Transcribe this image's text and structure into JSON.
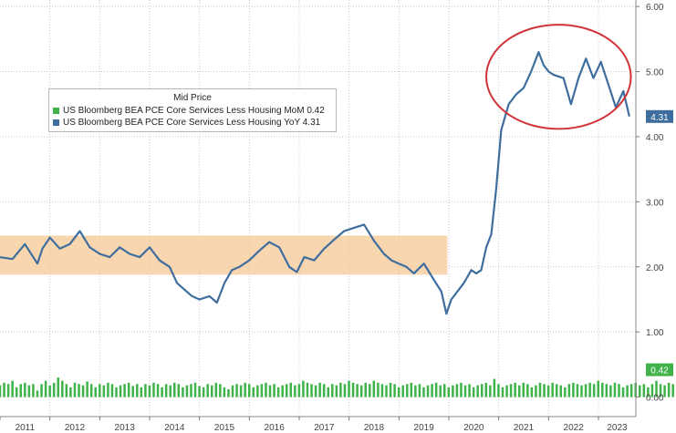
{
  "chart_data": {
    "type": "line",
    "legend": {
      "title": "Mid Price",
      "placement": "top-left",
      "entries": [
        {
          "name": "US Bloomberg BEA PCE Core Services Less Housing MoM",
          "value": "0.42",
          "color": "#3fb34a"
        },
        {
          "name": "US Bloomberg BEA PCE Core Services Less Housing YoY",
          "value": "4.31",
          "color": "#3f6e9e"
        }
      ]
    },
    "x_ticks": [
      "2011",
      "2012",
      "2013",
      "2014",
      "2015",
      "2016",
      "2017",
      "2018",
      "2019",
      "2020",
      "2021",
      "2022",
      "2023"
    ],
    "x_range": [
      2011.0,
      2023.75
    ],
    "y_ticks": [
      "0.00",
      "1.00",
      "2.00",
      "3.00",
      "4.00",
      "5.00",
      "6.00"
    ],
    "y_range": [
      -0.3,
      6.1
    ],
    "grid": true,
    "last_value_tags": [
      {
        "text": "4.31",
        "value": 4.31,
        "color": "#3f6e9e"
      },
      {
        "text": "0.42",
        "value": 0.42,
        "color": "#3fb34a"
      }
    ],
    "highlight_band": {
      "x_start": 2011.0,
      "x_end": 2019.97,
      "y_low": 1.88,
      "y_high": 2.48,
      "color": "#f5c48f"
    },
    "highlight_ellipse": {
      "x_center": 2022.2,
      "y_center": 4.92,
      "x_radius": 1.45,
      "y_radius": 0.8,
      "color": "#d0343a"
    },
    "series": [
      {
        "name": "US Bloomberg BEA PCE Core Services Less Housing YoY",
        "color": "#3f6e9e",
        "x": [
          2011.0,
          2011.25,
          2011.5,
          2011.75,
          2011.85,
          2012.0,
          2012.2,
          2012.4,
          2012.6,
          2012.8,
          2013.0,
          2013.2,
          2013.4,
          2013.6,
          2013.8,
          2014.0,
          2014.2,
          2014.4,
          2014.55,
          2014.7,
          2014.85,
          2015.0,
          2015.2,
          2015.35,
          2015.5,
          2015.65,
          2015.8,
          2016.0,
          2016.2,
          2016.4,
          2016.6,
          2016.8,
          2016.95,
          2017.1,
          2017.3,
          2017.5,
          2017.7,
          2017.9,
          2018.1,
          2018.3,
          2018.5,
          2018.7,
          2018.85,
          2019.0,
          2019.15,
          2019.3,
          2019.5,
          2019.7,
          2019.85,
          2019.95,
          2020.05,
          2020.15,
          2020.3,
          2020.45,
          2020.55,
          2020.65,
          2020.75,
          2020.85,
          2020.95,
          2021.05,
          2021.2,
          2021.35,
          2021.5,
          2021.65,
          2021.8,
          2021.9,
          2022.0,
          2022.1,
          2022.3,
          2022.45,
          2022.6,
          2022.75,
          2022.9,
          2023.05,
          2023.2,
          2023.35,
          2023.5,
          2023.62
        ],
        "values": [
          2.15,
          2.12,
          2.35,
          2.05,
          2.28,
          2.45,
          2.28,
          2.35,
          2.55,
          2.3,
          2.2,
          2.15,
          2.3,
          2.2,
          2.15,
          2.3,
          2.1,
          2.0,
          1.75,
          1.65,
          1.55,
          1.5,
          1.55,
          1.45,
          1.75,
          1.95,
          2.0,
          2.1,
          2.25,
          2.38,
          2.3,
          2.0,
          1.92,
          2.15,
          2.1,
          2.28,
          2.42,
          2.55,
          2.6,
          2.65,
          2.4,
          2.2,
          2.1,
          2.05,
          2.0,
          1.9,
          2.05,
          1.8,
          1.62,
          1.28,
          1.5,
          1.6,
          1.75,
          1.95,
          1.9,
          1.95,
          2.3,
          2.5,
          3.2,
          4.1,
          4.5,
          4.65,
          4.75,
          5.0,
          5.3,
          5.1,
          5.0,
          4.95,
          4.9,
          4.5,
          4.9,
          5.2,
          4.9,
          5.15,
          4.8,
          4.45,
          4.7,
          4.31
        ]
      }
    ],
    "bars": {
      "name": "US Bloomberg BEA PCE Core Services Less Housing MoM",
      "color": "#3fb34a",
      "negative_color": "#c0262b",
      "x_start": 2011.0,
      "x_step": 0.0833,
      "values": [
        0.18,
        0.22,
        0.2,
        0.25,
        0.15,
        0.2,
        0.22,
        0.18,
        0.2,
        0.1,
        0.2,
        0.25,
        0.18,
        0.22,
        0.3,
        0.25,
        0.2,
        0.15,
        0.22,
        0.2,
        0.18,
        0.24,
        0.2,
        0.15,
        0.2,
        0.18,
        0.22,
        0.2,
        0.15,
        0.18,
        0.2,
        0.22,
        0.17,
        0.2,
        0.15,
        0.2,
        0.18,
        0.22,
        0.2,
        0.15,
        0.2,
        0.18,
        0.22,
        0.2,
        0.15,
        0.18,
        0.2,
        0.22,
        0.17,
        0.15,
        0.2,
        0.18,
        0.22,
        0.2,
        0.15,
        0.12,
        0.18,
        0.2,
        0.18,
        0.22,
        0.2,
        0.15,
        0.18,
        0.2,
        0.22,
        0.18,
        0.2,
        0.15,
        0.18,
        0.2,
        0.22,
        0.18,
        0.2,
        0.25,
        0.22,
        0.2,
        0.18,
        0.22,
        0.2,
        0.15,
        0.2,
        0.18,
        0.22,
        0.2,
        0.25,
        0.22,
        0.2,
        0.18,
        0.22,
        0.2,
        0.25,
        0.22,
        0.2,
        0.18,
        0.22,
        0.2,
        0.15,
        0.18,
        0.2,
        0.22,
        0.18,
        0.2,
        0.15,
        0.18,
        0.2,
        0.22,
        0.18,
        0.2,
        0.15,
        0.18,
        0.2,
        0.22,
        0.18,
        0.2,
        0.15,
        0.18,
        0.2,
        0.22,
        0.18,
        0.28,
        0.2,
        0.15,
        0.18,
        0.2,
        0.22,
        0.18,
        0.22,
        0.2,
        0.15,
        0.18,
        0.22,
        0.2,
        0.18,
        0.22,
        0.2,
        0.18,
        0.15,
        0.2,
        0.22,
        0.2,
        0.18,
        0.2,
        0.22,
        0.2,
        0.25,
        0.22,
        0.2,
        0.18,
        0.22,
        0.2,
        0.15,
        0.18,
        0.2,
        0.22,
        0.18,
        0.2,
        0.15,
        0.2,
        0.25,
        0.2,
        0.18,
        0.22,
        0.2,
        0.18,
        0.15,
        0.2,
        0.22,
        0.18,
        0.2,
        0.15,
        0.18,
        0.2,
        0.22,
        0.18,
        0.2,
        0.15,
        0.18,
        0.2,
        0.22,
        0.18,
        0.2,
        0.25,
        0.22,
        0.2,
        0.18,
        0.22,
        0.2,
        0.15,
        0.2,
        0.3,
        0.25,
        0.2,
        0.15,
        0.1,
        0.2,
        0.18,
        0.22,
        0.2,
        0.15,
        0.18,
        0.2,
        0.22,
        0.18,
        0.2,
        0.25,
        0.2,
        0.3,
        0.18,
        0.15,
        0.2,
        0.22,
        0.35,
        0.25,
        0.3,
        -0.35,
        0.25,
        0.3,
        0.2,
        0.25,
        0.3,
        0.28,
        0.3,
        0.22,
        0.28,
        0.25,
        0.45,
        0.3,
        0.5,
        0.45,
        0.35,
        0.5,
        0.3,
        0.45,
        0.55,
        0.4,
        0.35,
        0.5,
        0.45,
        0.42,
        0.3,
        0.45,
        0.55,
        0.5,
        0.45,
        0.3,
        0.4,
        0.35,
        0.42,
        0.35,
        0.3,
        0.38,
        0.42
      ]
    }
  }
}
